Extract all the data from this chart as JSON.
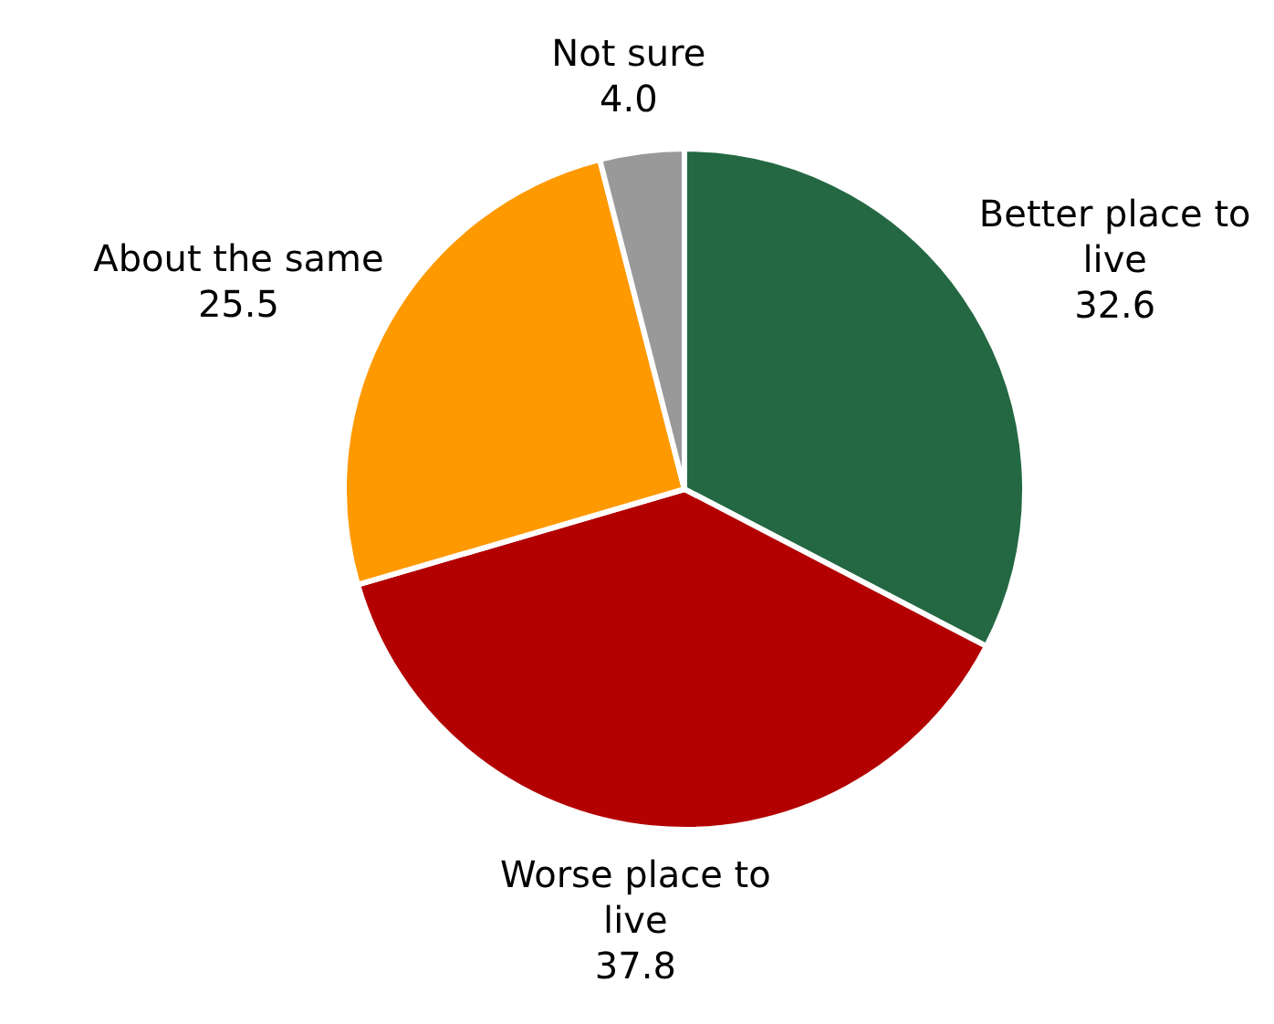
{
  "chart_data": {
    "type": "pie",
    "categories": [
      "Better place to live",
      "Worse place to live",
      "About the same",
      "Not sure"
    ],
    "values": [
      32.6,
      37.8,
      25.5,
      4.0
    ],
    "colors": [
      "#236842",
      "#b30000",
      "#ff9900",
      "#999999"
    ],
    "value_labels": [
      "32.6",
      "37.8",
      "25.5",
      "4.0"
    ],
    "legend": false
  }
}
